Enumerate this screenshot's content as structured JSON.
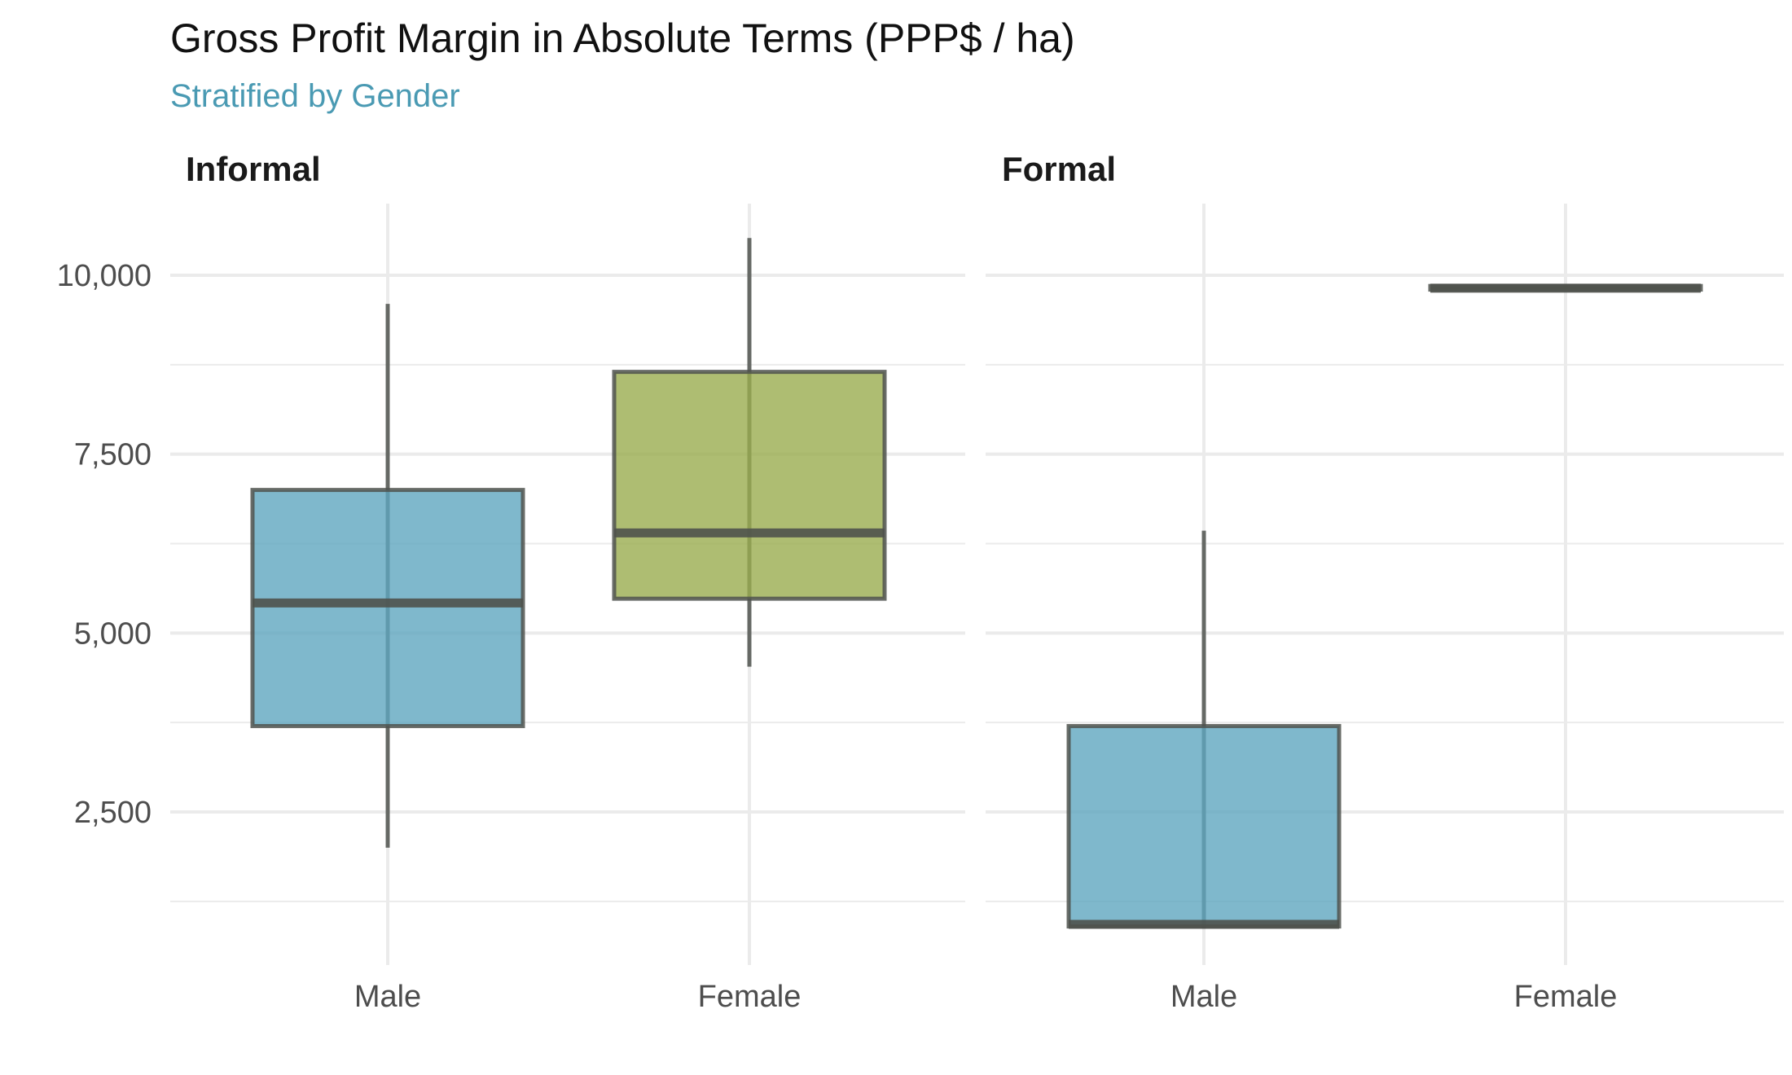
{
  "title": "Gross Profit Margin in Absolute Terms (PPP$ / ha)",
  "subtitle": "Stratified by Gender",
  "colors": {
    "Male": "#5fa6bf",
    "Female": "#9aad4f",
    "outline": "#4f524d",
    "grid": "#ebebeb",
    "text": "#4d4d4d"
  },
  "chart_data": {
    "type": "box",
    "title": "Gross Profit Margin in Absolute Terms (PPP$ / ha)",
    "subtitle": "Stratified by Gender",
    "xlabel": "",
    "ylabel": "",
    "ylim": [
      750,
      11100
    ],
    "yticks": [
      2500,
      5000,
      7500,
      10000
    ],
    "ytick_labels": [
      "2,500",
      "5,000",
      "7,500",
      "10,000"
    ],
    "categories": [
      "Male",
      "Female"
    ],
    "grid": true,
    "legend": "none",
    "panels": [
      {
        "name": "Informal",
        "boxes": [
          {
            "category": "Male",
            "min": 2000,
            "q1": 3700,
            "median": 5420,
            "q3": 7000,
            "max": 9600
          },
          {
            "category": "Female",
            "min": 4530,
            "q1": 5480,
            "median": 6400,
            "q3": 8650,
            "max": 10520
          }
        ]
      },
      {
        "name": "Formal",
        "boxes": [
          {
            "category": "Male",
            "min": 870,
            "q1": 900,
            "median": 930,
            "q3": 3700,
            "max": 6430
          },
          {
            "category": "Female",
            "min": 9800,
            "q1": 9800,
            "median": 9820,
            "q3": 9850,
            "max": 9850
          }
        ]
      }
    ]
  }
}
